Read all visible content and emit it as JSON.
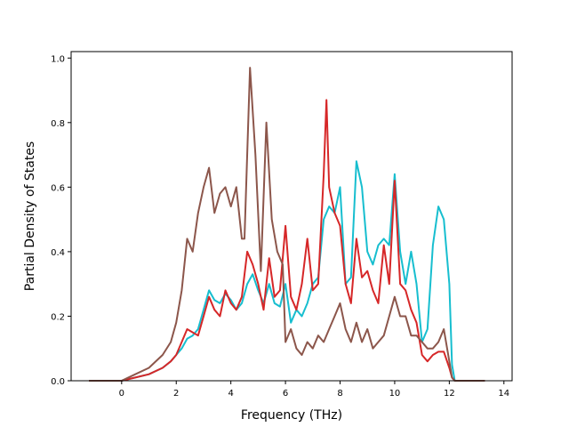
{
  "chart_data": {
    "type": "line",
    "title": "",
    "xlabel": "Frequency (THz)",
    "ylabel": "Partial Density of States",
    "xlim": [
      -1.85,
      14.3
    ],
    "ylim": [
      0.0,
      1.02
    ],
    "xticks": [
      0,
      2,
      4,
      6,
      8,
      10,
      12,
      14
    ],
    "yticks": [
      0.0,
      0.2,
      0.4,
      0.6,
      0.8,
      1.0
    ],
    "xtick_labels": [
      "0",
      "2",
      "4",
      "6",
      "8",
      "10",
      "12",
      "14"
    ],
    "ytick_labels": [
      "0.0",
      "0.2",
      "0.4",
      "0.6",
      "0.8",
      "1.0"
    ],
    "grid": false,
    "legend": "none",
    "series": [
      {
        "color": "#17becf",
        "x": [
          -1.2,
          0.0,
          0.5,
          1.0,
          1.5,
          1.8,
          2.0,
          2.2,
          2.4,
          2.6,
          2.8,
          3.0,
          3.2,
          3.4,
          3.6,
          3.8,
          4.0,
          4.2,
          4.4,
          4.6,
          4.8,
          5.0,
          5.2,
          5.4,
          5.6,
          5.8,
          6.0,
          6.2,
          6.4,
          6.6,
          6.8,
          7.0,
          7.2,
          7.4,
          7.6,
          7.8,
          8.0,
          8.2,
          8.4,
          8.6,
          8.8,
          9.0,
          9.2,
          9.4,
          9.6,
          9.8,
          10.0,
          10.2,
          10.4,
          10.6,
          10.8,
          11.0,
          11.2,
          11.4,
          11.6,
          11.8,
          12.0,
          12.1,
          12.2,
          13.3
        ],
        "y": [
          0.0,
          0.0,
          0.01,
          0.02,
          0.04,
          0.06,
          0.08,
          0.1,
          0.13,
          0.14,
          0.16,
          0.22,
          0.28,
          0.25,
          0.24,
          0.27,
          0.25,
          0.22,
          0.24,
          0.3,
          0.33,
          0.28,
          0.24,
          0.3,
          0.24,
          0.23,
          0.3,
          0.18,
          0.22,
          0.2,
          0.24,
          0.3,
          0.32,
          0.5,
          0.54,
          0.52,
          0.6,
          0.3,
          0.32,
          0.68,
          0.6,
          0.4,
          0.36,
          0.42,
          0.44,
          0.42,
          0.64,
          0.4,
          0.3,
          0.4,
          0.3,
          0.12,
          0.16,
          0.42,
          0.54,
          0.5,
          0.3,
          0.05,
          0.0,
          0.0
        ]
      },
      {
        "color": "#d62728",
        "x": [
          -1.2,
          0.0,
          0.5,
          1.0,
          1.5,
          1.8,
          2.0,
          2.2,
          2.4,
          2.6,
          2.8,
          3.0,
          3.2,
          3.4,
          3.6,
          3.8,
          4.0,
          4.2,
          4.4,
          4.6,
          4.8,
          5.0,
          5.2,
          5.4,
          5.6,
          5.8,
          6.0,
          6.2,
          6.4,
          6.6,
          6.8,
          7.0,
          7.2,
          7.4,
          7.5,
          7.6,
          7.8,
          8.0,
          8.2,
          8.4,
          8.6,
          8.8,
          9.0,
          9.2,
          9.4,
          9.6,
          9.8,
          10.0,
          10.2,
          10.4,
          10.6,
          10.8,
          11.0,
          11.2,
          11.4,
          11.6,
          11.8,
          12.0,
          12.1,
          12.2,
          13.3
        ],
        "y": [
          0.0,
          0.0,
          0.01,
          0.02,
          0.04,
          0.06,
          0.08,
          0.12,
          0.16,
          0.15,
          0.14,
          0.2,
          0.26,
          0.22,
          0.2,
          0.28,
          0.24,
          0.22,
          0.26,
          0.4,
          0.36,
          0.3,
          0.22,
          0.38,
          0.26,
          0.28,
          0.48,
          0.26,
          0.22,
          0.3,
          0.44,
          0.28,
          0.3,
          0.64,
          0.87,
          0.6,
          0.52,
          0.48,
          0.3,
          0.24,
          0.44,
          0.32,
          0.34,
          0.28,
          0.24,
          0.42,
          0.3,
          0.62,
          0.3,
          0.28,
          0.22,
          0.18,
          0.08,
          0.06,
          0.08,
          0.09,
          0.09,
          0.04,
          0.01,
          0.0,
          0.0
        ]
      },
      {
        "color": "#8c564b",
        "x": [
          -1.2,
          0.0,
          0.5,
          1.0,
          1.5,
          1.8,
          2.0,
          2.2,
          2.4,
          2.6,
          2.8,
          3.0,
          3.2,
          3.4,
          3.6,
          3.8,
          4.0,
          4.2,
          4.4,
          4.5,
          4.7,
          4.9,
          5.1,
          5.3,
          5.5,
          5.7,
          5.9,
          6.0,
          6.2,
          6.4,
          6.6,
          6.8,
          7.0,
          7.2,
          7.4,
          7.6,
          7.8,
          8.0,
          8.2,
          8.4,
          8.6,
          8.8,
          9.0,
          9.2,
          9.4,
          9.6,
          9.8,
          10.0,
          10.2,
          10.4,
          10.6,
          10.8,
          11.0,
          11.2,
          11.4,
          11.6,
          11.8,
          12.0,
          12.1,
          12.2,
          13.3
        ],
        "y": [
          0.0,
          0.0,
          0.02,
          0.04,
          0.08,
          0.12,
          0.18,
          0.28,
          0.44,
          0.4,
          0.52,
          0.6,
          0.66,
          0.52,
          0.58,
          0.6,
          0.54,
          0.6,
          0.44,
          0.44,
          0.97,
          0.7,
          0.34,
          0.8,
          0.5,
          0.4,
          0.36,
          0.12,
          0.16,
          0.1,
          0.08,
          0.12,
          0.1,
          0.14,
          0.12,
          0.16,
          0.2,
          0.24,
          0.16,
          0.12,
          0.18,
          0.12,
          0.16,
          0.1,
          0.12,
          0.14,
          0.2,
          0.26,
          0.2,
          0.2,
          0.14,
          0.14,
          0.12,
          0.1,
          0.1,
          0.12,
          0.16,
          0.06,
          0.01,
          0.0,
          0.0
        ]
      }
    ]
  }
}
